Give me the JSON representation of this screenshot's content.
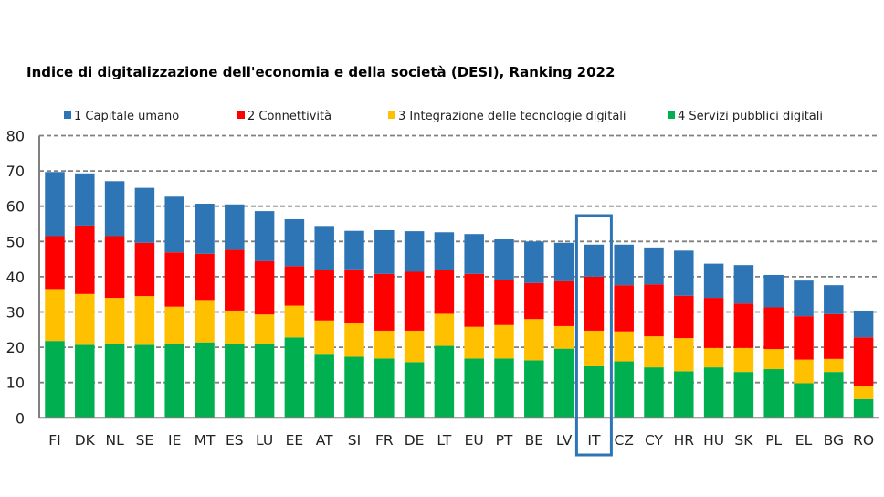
{
  "chart_data": {
    "type": "bar",
    "stacked": true,
    "title": "Indice di digitalizzazione dell'economia e della società (DESI), Ranking 2022",
    "xlabel": "",
    "ylabel": "",
    "ylim": [
      0,
      80
    ],
    "yticks": [
      0,
      10,
      20,
      30,
      40,
      50,
      60,
      70,
      80
    ],
    "grid": "horizontal-dashed",
    "legend_position": "top",
    "highlight_category": "IT",
    "categories": [
      "FI",
      "DK",
      "NL",
      "SE",
      "IE",
      "MT",
      "ES",
      "LU",
      "EE",
      "AT",
      "SI",
      "FR",
      "DE",
      "LT",
      "EU",
      "PT",
      "BE",
      "LV",
      "IT",
      "CZ",
      "CY",
      "HR",
      "HU",
      "SK",
      "PL",
      "EL",
      "BG",
      "RO"
    ],
    "series": [
      {
        "name": "4 Servizi pubblici digitali",
        "color": "#00B050",
        "values": [
          21.8,
          20.7,
          20.9,
          20.7,
          20.9,
          21.4,
          20.9,
          20.9,
          22.8,
          17.9,
          17.3,
          16.8,
          15.8,
          20.4,
          16.8,
          16.8,
          16.3,
          19.6,
          14.6,
          16.0,
          14.3,
          13.2,
          14.3,
          13.0,
          13.8,
          9.8,
          13.0,
          5.3
        ]
      },
      {
        "name": "3 Integrazione delle tecnologie digitali",
        "color": "#FFC000",
        "values": [
          14.7,
          14.4,
          13.1,
          13.8,
          10.6,
          12.0,
          9.5,
          8.4,
          9.0,
          9.7,
          9.7,
          7.9,
          8.9,
          9.1,
          9.0,
          9.5,
          11.7,
          6.4,
          10.1,
          8.5,
          8.8,
          9.4,
          5.5,
          6.8,
          5.7,
          6.7,
          3.7,
          3.8
        ]
      },
      {
        "name": "2 Connettività",
        "color": "#FF0000",
        "values": [
          15.0,
          19.4,
          17.5,
          15.1,
          15.4,
          13.1,
          17.2,
          15.1,
          11.2,
          14.3,
          15.1,
          16.1,
          16.7,
          12.4,
          15.0,
          12.9,
          10.2,
          12.7,
          15.3,
          13.1,
          14.7,
          12.0,
          14.2,
          12.6,
          11.8,
          12.3,
          12.7,
          13.7
        ]
      },
      {
        "name": "1 Capitale umano",
        "color": "#2E75B6",
        "values": [
          18.2,
          14.8,
          15.6,
          15.6,
          15.8,
          14.2,
          12.9,
          14.2,
          13.3,
          12.5,
          10.9,
          12.4,
          11.5,
          10.7,
          11.3,
          11.4,
          11.8,
          10.9,
          9.1,
          11.5,
          10.5,
          12.8,
          9.7,
          10.9,
          9.2,
          10.1,
          8.2,
          7.6
        ]
      }
    ],
    "legend": [
      {
        "label": "1 Capitale umano",
        "color": "#2E75B6"
      },
      {
        "label": "2 Connettività",
        "color": "#FF0000"
      },
      {
        "label": "3 Integrazione delle tecnologie digitali",
        "color": "#FFC000"
      },
      {
        "label": "4 Servizi pubblici digitali",
        "color": "#00B050"
      }
    ],
    "highlight_color": "#2E75B6",
    "axis_color": "#808080"
  }
}
